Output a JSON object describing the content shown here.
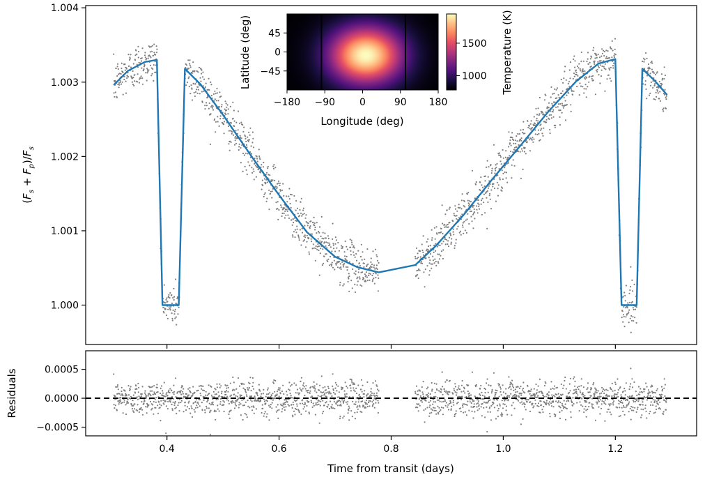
{
  "chart_data": [
    {
      "type": "scatter",
      "panel": "main",
      "title": "",
      "xlabel": "",
      "ylabel": "(F_s + F_p)/F_s",
      "xlim": [
        0.255,
        1.345
      ],
      "ylim": [
        0.99947,
        1.00403
      ],
      "xticks": [
        0.4,
        0.6,
        0.8,
        1.0,
        1.2
      ],
      "yticks": [
        1.0,
        1.001,
        1.002,
        1.003,
        1.004
      ],
      "ytick_labels": [
        "1.000",
        "1.001",
        "1.002",
        "1.003",
        "1.004"
      ],
      "series": [
        {
          "kind": "scatter",
          "color": "#7f7f7f",
          "noise_sigma": 0.00015,
          "segments": [
            [
              0.305,
              0.778
            ],
            [
              0.843,
              1.292
            ]
          ],
          "point_spacing": 0.00048
        },
        {
          "kind": "line",
          "color": "#1f77b4",
          "x": [
            0.305,
            0.33,
            0.36,
            0.382,
            0.392,
            0.421,
            0.432,
            0.46,
            0.5,
            0.55,
            0.6,
            0.65,
            0.7,
            0.74,
            0.778,
            0.843,
            0.88,
            0.93,
            0.98,
            1.03,
            1.08,
            1.13,
            1.17,
            1.2,
            1.211,
            1.238,
            1.248,
            1.27,
            1.292
          ],
          "y": [
            1.00296,
            1.00315,
            1.00327,
            1.0033,
            1.0,
            1.0,
            1.00318,
            1.00297,
            1.00256,
            1.00201,
            1.00148,
            1.00098,
            1.00065,
            1.00051,
            1.00044,
            1.00054,
            1.0008,
            1.00122,
            1.00169,
            1.00214,
            1.0026,
            1.00301,
            1.00325,
            1.00331,
            1.0,
            1.0,
            1.00318,
            1.00302,
            1.00283
          ]
        }
      ]
    },
    {
      "type": "scatter",
      "panel": "residuals",
      "title": "",
      "xlabel": "Time from transit (days)",
      "ylabel": "Residuals",
      "xlim": [
        0.255,
        1.345
      ],
      "ylim": [
        -0.00065,
        0.00082
      ],
      "xticks": [
        0.4,
        0.6,
        0.8,
        1.0,
        1.2
      ],
      "xtick_labels": [
        "0.4",
        "0.6",
        "0.8",
        "1.0",
        "1.2"
      ],
      "yticks": [
        -0.0005,
        0.0,
        0.0005
      ],
      "ytick_labels": [
        "−0.0005",
        "0.0000",
        "0.0005"
      ],
      "reference_line": {
        "y": 0.0,
        "style": "dashed",
        "color": "#000000"
      },
      "series": [
        {
          "kind": "scatter",
          "color": "#7f7f7f",
          "noise_sigma": 0.00015,
          "segments": [
            [
              0.305,
              0.778
            ],
            [
              0.843,
              1.292
            ]
          ]
        }
      ]
    },
    {
      "type": "heatmap",
      "panel": "inset",
      "title": "",
      "xlabel": "Longitude (deg)",
      "ylabel": "Latitude (deg)",
      "xlim": [
        -180,
        180
      ],
      "ylim": [
        -90,
        90
      ],
      "xticks": [
        -180,
        -90,
        0,
        90,
        180
      ],
      "xtick_labels": [
        "−180",
        "−90",
        "0",
        "90",
        "180"
      ],
      "yticks": [
        45,
        0,
        -45
      ],
      "ytick_labels": [
        "45",
        "0",
        "−45"
      ],
      "hotspot": {
        "lon": 8,
        "lat": -8,
        "peak_K": 1950
      },
      "night_K": 780,
      "day_edge_lines": [
        -98,
        102
      ],
      "colormap": "magma",
      "colorbar": {
        "label": "Temperature (K)",
        "range": [
          780,
          1950
        ],
        "ticks": [
          1000,
          1500
        ],
        "tick_labels": [
          "1000",
          "1500"
        ]
      }
    }
  ]
}
